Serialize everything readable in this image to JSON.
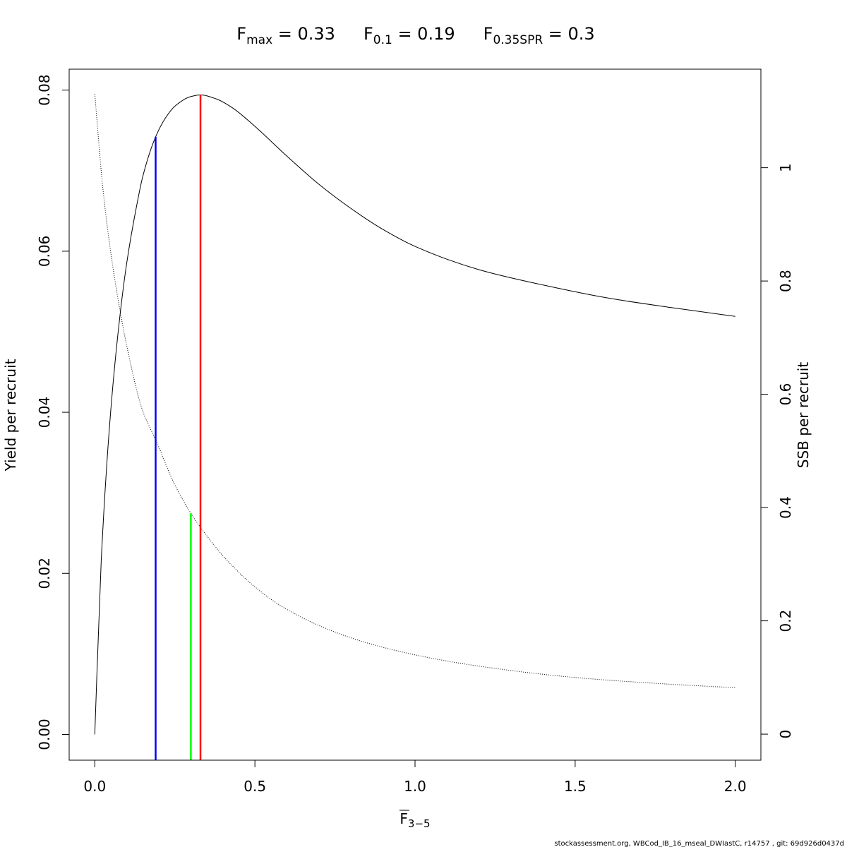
{
  "chart_data": {
    "type": "line",
    "title": {
      "parts": [
        {
          "base": "F",
          "sub": "max",
          "rest": " = 0.33"
        },
        {
          "base": "F",
          "sub": "0.1",
          "rest": " = 0.19"
        },
        {
          "base": "F",
          "sub": "0.35SPR",
          "rest": " = 0.3"
        }
      ]
    },
    "xlabel": {
      "base": "F",
      "sub": "3−5"
    },
    "ylabel_left": "Yield per recruit",
    "ylabel_right": "SSB per recruit",
    "xlim": [
      -0.08,
      2.08
    ],
    "ylim_left": [
      -0.0032,
      0.0826
    ],
    "ylim_right": [
      -0.046,
      1.174
    ],
    "x_ticks": [
      0.0,
      0.5,
      1.0,
      1.5,
      2.0
    ],
    "x_tick_labels": [
      "0.0",
      "0.5",
      "1.0",
      "1.5",
      "2.0"
    ],
    "y_left_ticks": [
      0.0,
      0.02,
      0.04,
      0.06,
      0.08
    ],
    "y_left_tick_labels": [
      "0.00",
      "0.02",
      "0.04",
      "0.06",
      "0.08"
    ],
    "y_right_ticks": [
      0,
      0.2,
      0.4,
      0.6,
      0.8,
      1
    ],
    "y_right_tick_labels": [
      "0",
      "0.2",
      "0.4",
      "0.6",
      "0.8",
      "1"
    ],
    "series": [
      {
        "axis": "left",
        "style": "solid",
        "color": "#000000",
        "x": [
          0,
          0.02,
          0.05,
          0.08,
          0.1,
          0.13,
          0.15,
          0.19,
          0.22,
          0.25,
          0.3,
          0.33,
          0.38,
          0.43,
          0.5,
          0.6,
          0.7,
          0.8,
          0.9,
          1.0,
          1.2,
          1.4,
          1.6,
          1.8,
          2.0
        ],
        "y": [
          0.0,
          0.0215,
          0.0403,
          0.0525,
          0.0586,
          0.0655,
          0.0693,
          0.0742,
          0.0765,
          0.078,
          0.0792,
          0.0794,
          0.0789,
          0.0778,
          0.0755,
          0.0718,
          0.0683,
          0.0653,
          0.0627,
          0.0606,
          0.0577,
          0.0558,
          0.0542,
          0.053,
          0.0519
        ]
      },
      {
        "axis": "right",
        "style": "dotted",
        "color": "#000000",
        "x": [
          0,
          0.025,
          0.05,
          0.075,
          0.1,
          0.15,
          0.19,
          0.25,
          0.3,
          0.35,
          0.4,
          0.5,
          0.6,
          0.8,
          1.0,
          1.2,
          1.5,
          1.8,
          2.0
        ],
        "y": [
          1.13,
          0.965,
          0.85,
          0.76,
          0.685,
          0.57,
          0.52,
          0.44,
          0.39,
          0.35,
          0.315,
          0.26,
          0.22,
          0.17,
          0.14,
          0.12,
          0.1,
          0.088,
          0.082
        ]
      }
    ],
    "reference_lines": [
      {
        "name": "F0.1",
        "x": 0.19,
        "color": "#0000ff",
        "y_top": 0.0742,
        "axis": "left"
      },
      {
        "name": "F0.35SPR",
        "x": 0.3,
        "color": "#00ff00",
        "y_top": 0.39,
        "axis": "right"
      },
      {
        "name": "Fmax",
        "x": 0.33,
        "color": "#ff0000",
        "y_top": 0.0794,
        "axis": "left"
      }
    ],
    "grid": false,
    "legend": "none"
  },
  "footer": "stockassessment.org, WBCod_IB_16_mseal_DWIastC, r14757 , git: 69d926d0437d"
}
